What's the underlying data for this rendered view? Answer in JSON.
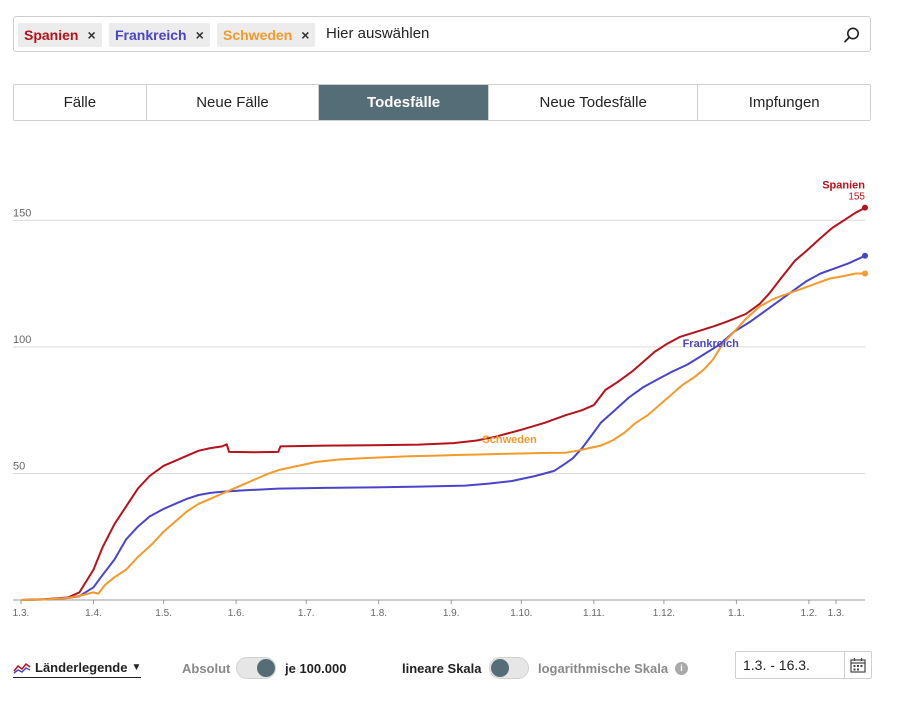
{
  "search": {
    "chips": [
      {
        "label": "Spanien",
        "color": "#b5121b",
        "remove": "×"
      },
      {
        "label": "Frankreich",
        "color": "#4a44c9",
        "remove": "×"
      },
      {
        "label": "Schweden",
        "color": "#f39a2b",
        "remove": "×"
      }
    ],
    "placeholder": "Hier auswählen",
    "icon": "search-icon"
  },
  "tabs": [
    {
      "label": "Fälle",
      "active": false
    },
    {
      "label": "Neue Fälle",
      "active": false
    },
    {
      "label": "Todesfälle",
      "active": true
    },
    {
      "label": "Neue Todesfälle",
      "active": false
    },
    {
      "label": "Impfungen",
      "active": false
    }
  ],
  "controls": {
    "legend_label": "Länderlegende",
    "legend_caret": "▼",
    "absolute_label": "Absolut",
    "per100k_label": "je 100.000",
    "linear_label": "lineare Skala",
    "log_label": "logarithmische Skala",
    "info": "i",
    "date_range": "1.3. - 16.3."
  },
  "chart_data": {
    "type": "line",
    "x_tick_labels": [
      "1.3.",
      "1.4.",
      "1.5.",
      "1.6.",
      "1.7.",
      "1.8.",
      "1.9.",
      "1.10.",
      "1.11.",
      "1.12.",
      "1.1.",
      "1.2.",
      "1.3."
    ],
    "y_ticks": [
      50,
      100,
      150
    ],
    "ylim": [
      0,
      160
    ],
    "grid": true,
    "series": [
      {
        "name": "Spanien",
        "color": "#b5121b",
        "end_label": "155",
        "values": [
          [
            0,
            0
          ],
          [
            10,
            0.3
          ],
          [
            20,
            1
          ],
          [
            25,
            3
          ],
          [
            31,
            12
          ],
          [
            35,
            21
          ],
          [
            40,
            30
          ],
          [
            45,
            37
          ],
          [
            50,
            44
          ],
          [
            55,
            49
          ],
          [
            61,
            53
          ],
          [
            66,
            55
          ],
          [
            71,
            57
          ],
          [
            76,
            59
          ],
          [
            81,
            60
          ],
          [
            86,
            60.7
          ],
          [
            88,
            61.5
          ],
          [
            89,
            58.5
          ],
          [
            100,
            58.4
          ],
          [
            110,
            58.5
          ],
          [
            111,
            60.7
          ],
          [
            130,
            61
          ],
          [
            150,
            61.1
          ],
          [
            170,
            61.4
          ],
          [
            185,
            62
          ],
          [
            195,
            63
          ],
          [
            203,
            64.5
          ],
          [
            213,
            67
          ],
          [
            224,
            70
          ],
          [
            233,
            73
          ],
          [
            240,
            75
          ],
          [
            245,
            77
          ],
          [
            250,
            83
          ],
          [
            255,
            86
          ],
          [
            261,
            90
          ],
          [
            266,
            94
          ],
          [
            271,
            98
          ],
          [
            276,
            101
          ],
          [
            282,
            104
          ],
          [
            289,
            106
          ],
          [
            296,
            108
          ],
          [
            302,
            110
          ],
          [
            310,
            113
          ],
          [
            316,
            117
          ],
          [
            320,
            121
          ],
          [
            325,
            127
          ],
          [
            331,
            134
          ],
          [
            336,
            138
          ],
          [
            342,
            143
          ],
          [
            347,
            147
          ],
          [
            352,
            150
          ],
          [
            357,
            153
          ],
          [
            361,
            155
          ]
        ]
      },
      {
        "name": "Frankreich",
        "color": "#4a44c9",
        "values": [
          [
            0,
            0
          ],
          [
            10,
            0.2
          ],
          [
            20,
            0.8
          ],
          [
            25,
            1.5
          ],
          [
            31,
            5
          ],
          [
            35,
            10
          ],
          [
            40,
            16
          ],
          [
            45,
            24
          ],
          [
            50,
            29
          ],
          [
            55,
            33
          ],
          [
            61,
            36
          ],
          [
            66,
            38
          ],
          [
            71,
            40
          ],
          [
            76,
            41.5
          ],
          [
            81,
            42.3
          ],
          [
            86,
            42.8
          ],
          [
            95,
            43.3
          ],
          [
            110,
            44
          ],
          [
            130,
            44.3
          ],
          [
            150,
            44.5
          ],
          [
            170,
            44.8
          ],
          [
            190,
            45.2
          ],
          [
            200,
            46
          ],
          [
            210,
            47
          ],
          [
            220,
            49
          ],
          [
            228,
            51
          ],
          [
            233,
            54
          ],
          [
            236,
            56
          ],
          [
            240,
            60
          ],
          [
            244,
            65
          ],
          [
            248,
            70
          ],
          [
            254,
            75
          ],
          [
            260,
            80
          ],
          [
            266,
            84
          ],
          [
            272,
            87
          ],
          [
            278,
            90
          ],
          [
            285,
            93
          ],
          [
            292,
            97
          ],
          [
            299,
            101
          ],
          [
            305,
            106
          ],
          [
            312,
            110
          ],
          [
            318,
            114
          ],
          [
            324,
            118
          ],
          [
            330,
            122
          ],
          [
            336,
            126
          ],
          [
            342,
            129
          ],
          [
            348,
            131
          ],
          [
            354,
            133
          ],
          [
            361,
            136
          ]
        ]
      },
      {
        "name": "Schweden",
        "color": "#f39a2b",
        "values": [
          [
            0,
            0
          ],
          [
            10,
            0.2
          ],
          [
            20,
            0.8
          ],
          [
            26,
            1.8
          ],
          [
            31,
            3
          ],
          [
            33,
            2.5
          ],
          [
            36,
            6
          ],
          [
            40,
            9
          ],
          [
            45,
            12
          ],
          [
            50,
            17
          ],
          [
            56,
            22
          ],
          [
            61,
            27
          ],
          [
            66,
            31
          ],
          [
            71,
            35
          ],
          [
            76,
            38
          ],
          [
            81,
            40
          ],
          [
            86,
            42
          ],
          [
            91,
            44
          ],
          [
            96,
            46
          ],
          [
            101,
            48
          ],
          [
            106,
            50
          ],
          [
            111,
            51.5
          ],
          [
            116,
            52.5
          ],
          [
            121,
            53.5
          ],
          [
            126,
            54.5
          ],
          [
            136,
            55.5
          ],
          [
            146,
            56
          ],
          [
            156,
            56.4
          ],
          [
            166,
            56.8
          ],
          [
            176,
            57
          ],
          [
            186,
            57.3
          ],
          [
            196,
            57.5
          ],
          [
            206,
            57.7
          ],
          [
            216,
            57.9
          ],
          [
            226,
            58.1
          ],
          [
            233,
            58.2
          ],
          [
            238,
            59
          ],
          [
            243,
            60
          ],
          [
            248,
            61
          ],
          [
            253,
            63
          ],
          [
            258,
            66
          ],
          [
            263,
            70
          ],
          [
            268,
            73
          ],
          [
            273,
            77
          ],
          [
            278,
            81
          ],
          [
            283,
            85
          ],
          [
            288,
            88
          ],
          [
            292,
            91
          ],
          [
            296,
            95
          ],
          [
            300,
            101
          ],
          [
            305,
            106
          ],
          [
            310,
            111
          ],
          [
            316,
            116
          ],
          [
            322,
            119
          ],
          [
            328,
            121
          ],
          [
            334,
            123
          ],
          [
            340,
            125
          ],
          [
            346,
            127
          ],
          [
            352,
            128
          ],
          [
            357,
            129
          ],
          [
            361,
            129
          ]
        ]
      }
    ],
    "annotations": [
      {
        "text": "Spanien",
        "series": "Spanien"
      },
      {
        "text": "Frankreich",
        "series": "Frankreich"
      },
      {
        "text": "Schweden",
        "series": "Schweden"
      }
    ]
  }
}
